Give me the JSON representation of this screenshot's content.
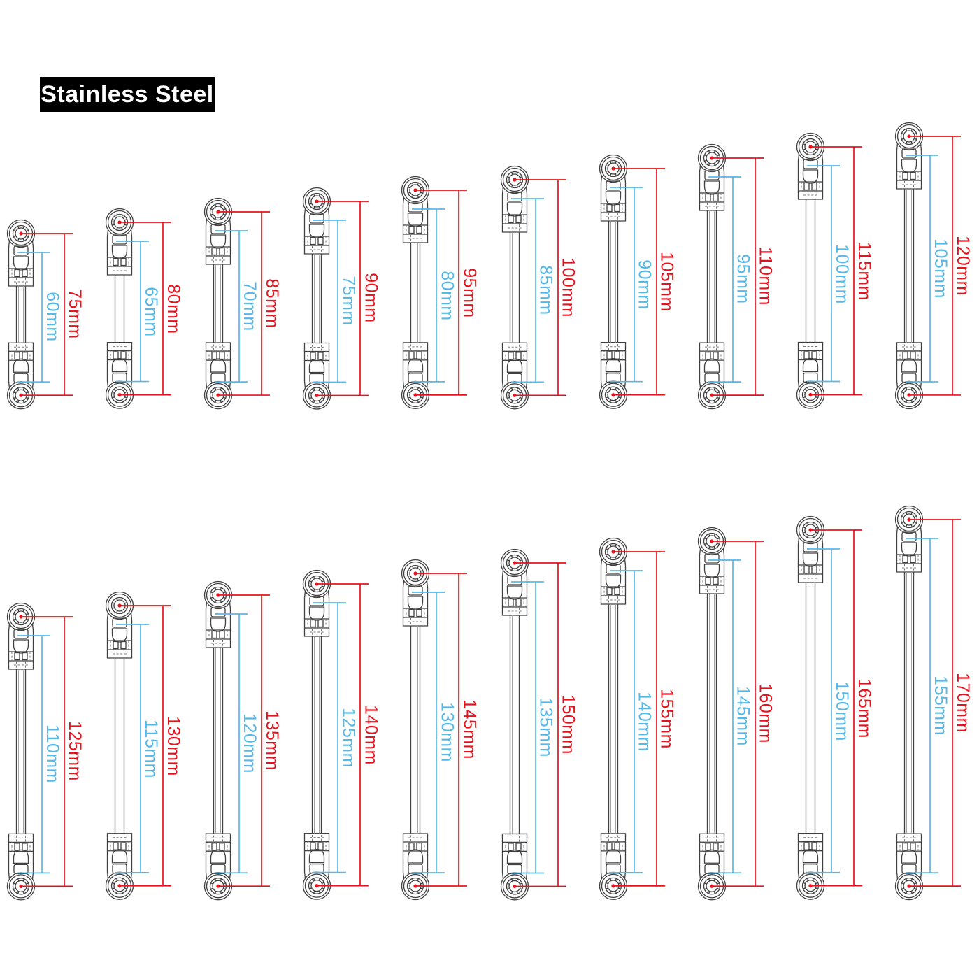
{
  "badge": {
    "label": "Stainless Steel"
  },
  "units": "mm",
  "colors": {
    "dimension_red": "#e8121c",
    "dimension_blue": "#54b8e8",
    "line_art": "#404040",
    "badge_bg": "#000000",
    "badge_text": "#ffffff",
    "background": "#ffffff"
  },
  "rows": [
    {
      "name": "top-row",
      "items": [
        {
          "total_mm": 75,
          "rod_mm": 60,
          "total_label": "75mm",
          "rod_label": "60mm"
        },
        {
          "total_mm": 80,
          "rod_mm": 65,
          "total_label": "80mm",
          "rod_label": "65mm"
        },
        {
          "total_mm": 85,
          "rod_mm": 70,
          "total_label": "85mm",
          "rod_label": "70mm"
        },
        {
          "total_mm": 90,
          "rod_mm": 75,
          "total_label": "90mm",
          "rod_label": "75mm"
        },
        {
          "total_mm": 95,
          "rod_mm": 80,
          "total_label": "95mm",
          "rod_label": "80mm"
        },
        {
          "total_mm": 100,
          "rod_mm": 85,
          "total_label": "100mm",
          "rod_label": "85mm"
        },
        {
          "total_mm": 105,
          "rod_mm": 90,
          "total_label": "105mm",
          "rod_label": "90mm"
        },
        {
          "total_mm": 110,
          "rod_mm": 95,
          "total_label": "110mm",
          "rod_label": "95mm"
        },
        {
          "total_mm": 115,
          "rod_mm": 100,
          "total_label": "115mm",
          "rod_label": "100mm"
        },
        {
          "total_mm": 120,
          "rod_mm": 105,
          "total_label": "120mm",
          "rod_label": "105mm"
        }
      ]
    },
    {
      "name": "bottom-row",
      "items": [
        {
          "total_mm": 125,
          "rod_mm": 110,
          "total_label": "125mm",
          "rod_label": "110mm"
        },
        {
          "total_mm": 130,
          "rod_mm": 115,
          "total_label": "130mm",
          "rod_label": "115mm"
        },
        {
          "total_mm": 135,
          "rod_mm": 120,
          "total_label": "135mm",
          "rod_label": "120mm"
        },
        {
          "total_mm": 140,
          "rod_mm": 125,
          "total_label": "140mm",
          "rod_label": "125mm"
        },
        {
          "total_mm": 145,
          "rod_mm": 130,
          "total_label": "145mm",
          "rod_label": "130mm"
        },
        {
          "total_mm": 150,
          "rod_mm": 135,
          "total_label": "150mm",
          "rod_label": "135mm"
        },
        {
          "total_mm": 155,
          "rod_mm": 140,
          "total_label": "155mm",
          "rod_label": "140mm"
        },
        {
          "total_mm": 160,
          "rod_mm": 145,
          "total_label": "160mm",
          "rod_label": "145mm"
        },
        {
          "total_mm": 165,
          "rod_mm": 150,
          "total_label": "165mm",
          "rod_label": "150mm"
        },
        {
          "total_mm": 170,
          "rod_mm": 155,
          "total_label": "170mm",
          "rod_label": "155mm"
        }
      ]
    }
  ]
}
